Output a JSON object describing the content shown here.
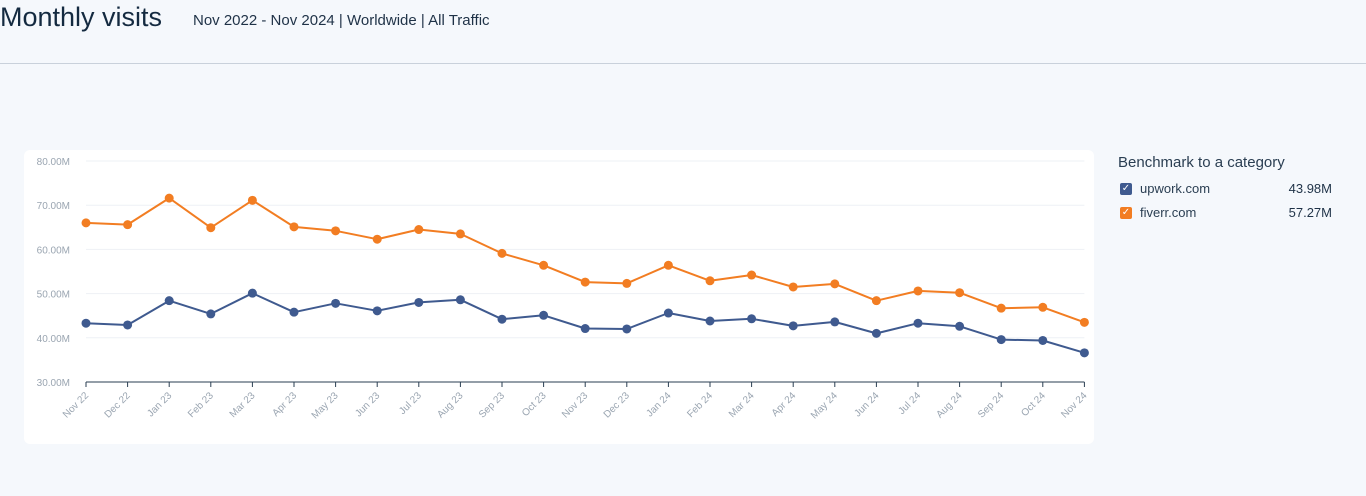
{
  "header": {
    "title": "Monthly visits",
    "subtitle": "Nov 2022 - Nov 2024 | Worldwide | All Traffic"
  },
  "legend": {
    "title": "Benchmark to a category",
    "items": [
      {
        "name": "upwork.com",
        "value": "43.98M",
        "color": "#3f5a8f",
        "checked": true
      },
      {
        "name": "fiverr.com",
        "value": "57.27M",
        "color": "#f27d22",
        "checked": true
      }
    ]
  },
  "chart_data": {
    "type": "line",
    "title": "",
    "xlabel": "",
    "ylabel": "",
    "categories": [
      "Nov 22",
      "Dec 22",
      "Jan 23",
      "Feb 23",
      "Mar 23",
      "Apr 23",
      "May 23",
      "Jun 23",
      "Jul 23",
      "Aug 23",
      "Sep 23",
      "Oct 23",
      "Nov 23",
      "Dec 23",
      "Jan 24",
      "Feb 24",
      "Mar 24",
      "Apr 24",
      "May 24",
      "Jun 24",
      "Jul 24",
      "Aug 24",
      "Sep 24",
      "Oct 24",
      "Nov 24"
    ],
    "yticks": [
      "30.00M",
      "40.00M",
      "50.00M",
      "60.00M",
      "70.00M",
      "80.00M"
    ],
    "ylim": [
      30,
      80
    ],
    "yunit": "M",
    "grid": true,
    "series": [
      {
        "name": "upwork.com",
        "color": "#3f5a8f",
        "values": [
          43.3,
          42.9,
          48.4,
          45.4,
          50.1,
          45.8,
          47.8,
          46.1,
          48.0,
          48.6,
          44.2,
          45.1,
          42.1,
          42.0,
          45.6,
          43.8,
          44.3,
          42.7,
          43.6,
          41.0,
          43.3,
          42.6,
          39.6,
          39.4,
          36.6
        ]
      },
      {
        "name": "fiverr.com",
        "color": "#f27d22",
        "values": [
          66.0,
          65.6,
          71.6,
          64.9,
          71.1,
          65.1,
          64.2,
          62.3,
          64.5,
          63.5,
          59.1,
          56.4,
          52.6,
          52.3,
          56.4,
          52.9,
          54.2,
          51.5,
          52.2,
          48.4,
          50.6,
          50.2,
          46.7,
          46.9,
          43.5
        ]
      }
    ]
  }
}
